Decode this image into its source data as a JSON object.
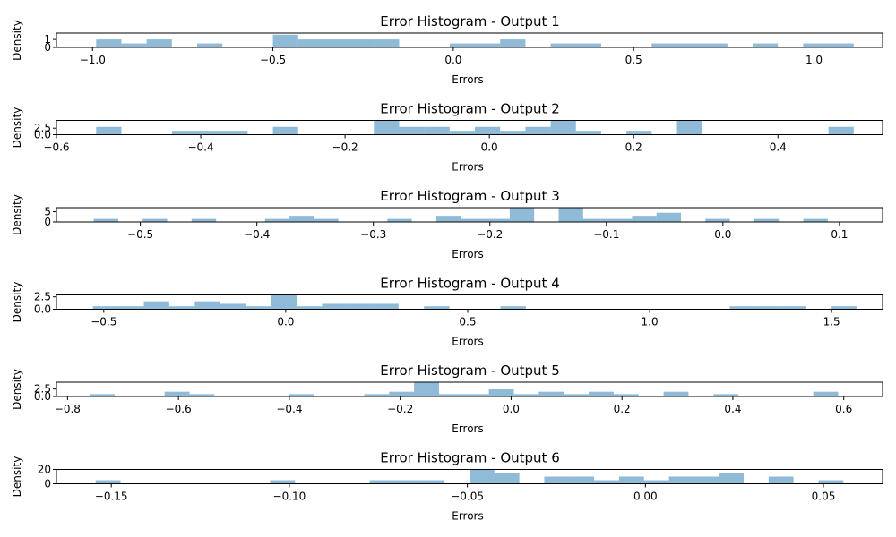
{
  "chart_data": [
    {
      "type": "bar",
      "title": "Error Histogram - Output 1",
      "xlabel": "Errors",
      "ylabel": "Density",
      "xlim": [
        -1.1,
        1.19
      ],
      "ylim": [
        0,
        1.8
      ],
      "xticks": [
        -1.0,
        -0.5,
        0.0,
        0.5,
        1.0
      ],
      "xtick_labels": [
        "−1.0",
        "−0.5",
        "0.0",
        "0.5",
        "1.0"
      ],
      "yticks": [
        0,
        1
      ],
      "ytick_labels": [
        "0",
        "1"
      ],
      "bin_edges": [
        -0.99,
        -0.92,
        -0.85,
        -0.78,
        -0.71,
        -0.64,
        -0.57,
        -0.5,
        -0.43,
        -0.36,
        -0.29,
        -0.22,
        -0.15,
        -0.08,
        -0.01,
        0.06,
        0.13,
        0.2,
        0.27,
        0.34,
        0.41,
        0.48,
        0.55,
        0.62,
        0.69,
        0.76,
        0.83,
        0.9,
        0.97,
        1.04,
        1.11
      ],
      "values": [
        1.0,
        0.5,
        1.0,
        0,
        0.5,
        0,
        0,
        1.6,
        1.0,
        1.0,
        1.0,
        1.0,
        0,
        0,
        0.5,
        0.5,
        1.0,
        0,
        0.5,
        0.5,
        0,
        0,
        0.5,
        0.5,
        0.5,
        0,
        0.5,
        0,
        0.5,
        0.5
      ]
    },
    {
      "type": "bar",
      "title": "Error Histogram - Output 2",
      "xlabel": "Errors",
      "ylabel": "Density",
      "xlim": [
        -0.6,
        0.545
      ],
      "ylim": [
        0,
        5.5
      ],
      "xticks": [
        -0.6,
        -0.4,
        -0.2,
        0.0,
        0.2,
        0.4
      ],
      "xtick_labels": [
        "−0.6",
        "−0.4",
        "−0.2",
        "0.0",
        "0.2",
        "0.4"
      ],
      "yticks": [
        0.0,
        2.5
      ],
      "ytick_labels": [
        "0.0",
        "2.5"
      ],
      "bin_edges": [
        -0.545,
        -0.51,
        -0.475,
        -0.44,
        -0.405,
        -0.37,
        -0.335,
        -0.3,
        -0.265,
        -0.23,
        -0.195,
        -0.16,
        -0.125,
        -0.09,
        -0.055,
        -0.02,
        0.015,
        0.05,
        0.085,
        0.12,
        0.155,
        0.19,
        0.225,
        0.26,
        0.295,
        0.33,
        0.365,
        0.4,
        0.435,
        0.47,
        0.505
      ],
      "values": [
        3.0,
        0,
        0,
        1.5,
        1.5,
        1.5,
        0,
        3.0,
        0,
        0,
        0,
        5.5,
        3.0,
        3.0,
        1.5,
        3.0,
        1.5,
        3.0,
        5.5,
        1.5,
        0,
        1.5,
        0,
        5.5,
        0,
        0,
        0,
        0,
        0,
        3.0
      ]
    },
    {
      "type": "bar",
      "title": "Error Histogram - Output 3",
      "xlabel": "Errors",
      "ylabel": "Density",
      "xlim": [
        -0.572,
        0.137
      ],
      "ylim": [
        0,
        7.0
      ],
      "xticks": [
        -0.5,
        -0.4,
        -0.3,
        -0.2,
        -0.1,
        0.0,
        0.1
      ],
      "xtick_labels": [
        "−0.5",
        "−0.4",
        "−0.3",
        "−0.2",
        "−0.1",
        "0.0",
        "0.1"
      ],
      "yticks": [
        0,
        5
      ],
      "ytick_labels": [
        "0",
        "5"
      ],
      "bin_edges": [
        -0.54,
        -0.519,
        -0.498,
        -0.477,
        -0.456,
        -0.435,
        -0.414,
        -0.393,
        -0.372,
        -0.351,
        -0.33,
        -0.309,
        -0.288,
        -0.267,
        -0.246,
        -0.225,
        -0.204,
        -0.183,
        -0.162,
        -0.141,
        -0.12,
        -0.099,
        -0.078,
        -0.057,
        -0.036,
        -0.015,
        0.006,
        0.027,
        0.048,
        0.069,
        0.09,
        0.111
      ],
      "values": [
        1.5,
        0,
        1.5,
        0,
        1.5,
        0,
        0,
        1.5,
        3.0,
        1.5,
        0,
        0,
        1.5,
        0,
        3.0,
        1.5,
        1.5,
        7.0,
        0,
        7.0,
        1.5,
        1.5,
        3.0,
        4.5,
        0,
        1.5,
        0,
        1.5,
        0,
        1.5,
        0
      ]
    },
    {
      "type": "bar",
      "title": "Error Histogram - Output 4",
      "xlabel": "Errors",
      "ylabel": "Density",
      "xlim": [
        -0.63,
        1.64
      ],
      "ylim": [
        0,
        2.9
      ],
      "xticks": [
        -0.5,
        0.0,
        0.5,
        1.0,
        1.5
      ],
      "xtick_labels": [
        "−0.5",
        "0.0",
        "0.5",
        "1.0",
        "1.5"
      ],
      "yticks": [
        0.0,
        2.5
      ],
      "ytick_labels": [
        "0.0",
        "2.5"
      ],
      "bin_edges": [
        -0.53,
        -0.46,
        -0.39,
        -0.32,
        -0.25,
        -0.18,
        -0.11,
        -0.04,
        0.03,
        0.1,
        0.17,
        0.24,
        0.31,
        0.38,
        0.45,
        0.52,
        0.59,
        0.66,
        0.73,
        0.8,
        0.87,
        0.94,
        1.01,
        1.08,
        1.15,
        1.22,
        1.29,
        1.36,
        1.43,
        1.5,
        1.57
      ],
      "values": [
        0.6,
        0.6,
        1.6,
        0.6,
        1.6,
        1.1,
        0.6,
        2.9,
        0.6,
        1.1,
        1.1,
        1.1,
        0,
        0.6,
        0,
        0,
        0.6,
        0,
        0,
        0,
        0,
        0,
        0,
        0,
        0,
        0.6,
        0.6,
        0.6,
        0,
        0.6
      ]
    },
    {
      "type": "bar",
      "title": "Error Histogram - Output 5",
      "xlabel": "Errors",
      "ylabel": "Density",
      "xlim": [
        -0.82,
        0.67
      ],
      "ylim": [
        0,
        4.8
      ],
      "xticks": [
        -0.8,
        -0.6,
        -0.4,
        -0.2,
        0.0,
        0.2,
        0.4,
        0.6
      ],
      "xtick_labels": [
        "−0.8",
        "−0.6",
        "−0.4",
        "−0.2",
        "0.0",
        "0.2",
        "0.4",
        "0.6"
      ],
      "yticks": [
        0.0,
        2.5
      ],
      "ytick_labels": [
        "0.0",
        "2.5"
      ],
      "bin_edges": [
        -0.76,
        -0.715,
        -0.67,
        -0.625,
        -0.58,
        -0.535,
        -0.49,
        -0.445,
        -0.4,
        -0.355,
        -0.31,
        -0.265,
        -0.22,
        -0.175,
        -0.13,
        -0.085,
        -0.04,
        0.005,
        0.05,
        0.095,
        0.14,
        0.185,
        0.23,
        0.275,
        0.32,
        0.365,
        0.41,
        0.455,
        0.5,
        0.545,
        0.59
      ],
      "values": [
        0.8,
        0,
        0,
        1.6,
        0.8,
        0,
        0,
        0,
        0.8,
        0,
        0,
        0.8,
        1.6,
        4.8,
        0.8,
        0.8,
        2.4,
        0.8,
        1.6,
        0.8,
        1.6,
        0.8,
        0,
        1.6,
        0,
        0.8,
        0,
        0,
        0,
        1.6
      ]
    },
    {
      "type": "bar",
      "title": "Error Histogram - Output 6",
      "xlabel": "Errors",
      "ylabel": "Density",
      "xlim": [
        -0.1654,
        0.0666
      ],
      "ylim": [
        0,
        20
      ],
      "xticks": [
        -0.15,
        -0.1,
        -0.05,
        0.0,
        0.05
      ],
      "xtick_labels": [
        "−0.15",
        "−0.10",
        "−0.05",
        "0.00",
        "0.05"
      ],
      "yticks": [
        0,
        20
      ],
      "ytick_labels": [
        "0",
        "20"
      ],
      "bin_edges": [
        -0.1544,
        -0.1474,
        -0.1404,
        -0.1334,
        -0.1264,
        -0.1194,
        -0.1124,
        -0.1054,
        -0.0984,
        -0.0914,
        -0.0844,
        -0.0774,
        -0.0704,
        -0.0634,
        -0.0564,
        -0.0494,
        -0.0424,
        -0.0354,
        -0.0284,
        -0.0214,
        -0.0144,
        -0.0074,
        -0.0004,
        0.0066,
        0.0136,
        0.0206,
        0.0276,
        0.0346,
        0.0416,
        0.0486,
        0.0556
      ],
      "values": [
        5,
        0,
        0,
        0,
        0,
        0,
        0,
        5,
        0,
        0,
        0,
        5,
        5,
        5,
        0,
        20,
        15,
        0,
        10,
        10,
        5,
        10,
        5,
        10,
        10,
        15,
        0,
        10,
        0,
        5
      ]
    }
  ]
}
